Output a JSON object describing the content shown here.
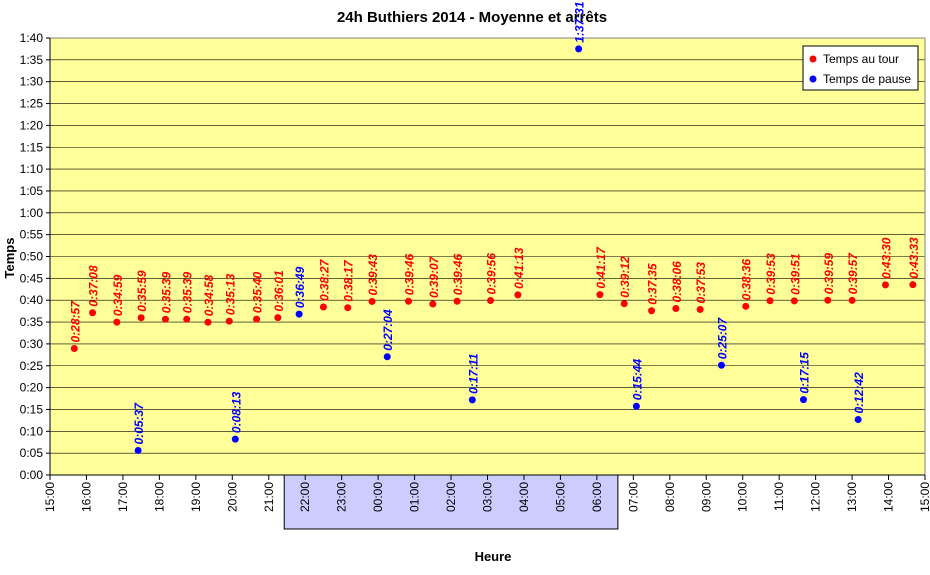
{
  "chart_data": {
    "type": "scatter",
    "title": "24h Buthiers 2014 - Moyenne et arrêts",
    "xlabel": "Heure",
    "ylabel": "Temps",
    "x_ticks": [
      "15:00",
      "16:00",
      "17:00",
      "18:00",
      "19:00",
      "20:00",
      "21:00",
      "22:00",
      "23:00",
      "00:00",
      "01:00",
      "02:00",
      "03:00",
      "04:00",
      "05:00",
      "06:00",
      "07:00",
      "08:00",
      "09:00",
      "10:00",
      "11:00",
      "12:00",
      "13:00",
      "14:00",
      "15:00"
    ],
    "highlighted_ticks": [
      "22:00",
      "23:00",
      "00:00",
      "01:00",
      "02:00",
      "03:00",
      "04:00",
      "05:00",
      "06:00"
    ],
    "y_ticks": [
      "0:00",
      "0:05",
      "0:10",
      "0:15",
      "0:20",
      "0:25",
      "0:30",
      "0:35",
      "0:40",
      "0:45",
      "0:50",
      "0:55",
      "1:00",
      "1:05",
      "1:10",
      "1:15",
      "1:20",
      "1:25",
      "1:30",
      "1:35",
      "1:40"
    ],
    "ylim": [
      "0:00",
      "1:40"
    ],
    "xlim": [
      "15:00",
      "15:00"
    ],
    "grid": true,
    "legend_position": "top-right",
    "colors": {
      "plot_bg": "#FFFF99",
      "night_band": "#CCCCFF",
      "lap": "#FF0000",
      "pause": "#0000FF"
    },
    "series": [
      {
        "name": "Temps au tour",
        "color": "#FF0000",
        "points": [
          {
            "x": "15:40",
            "y": "0:28:57",
            "label": "0:28:57"
          },
          {
            "x": "16:10",
            "y": "0:37:08",
            "label": "0:37:08"
          },
          {
            "x": "16:50",
            "y": "0:34:59",
            "label": "0:34:59"
          },
          {
            "x": "17:30",
            "y": "0:35:59",
            "label": "0:35:59"
          },
          {
            "x": "18:10",
            "y": "0:35:39",
            "label": "0:35:39"
          },
          {
            "x": "18:45",
            "y": "0:35:39",
            "label": "0:35:39"
          },
          {
            "x": "19:20",
            "y": "0:34:58",
            "label": "0:34:58"
          },
          {
            "x": "19:55",
            "y": "0:35:13",
            "label": "0:35:13"
          },
          {
            "x": "20:40",
            "y": "0:35:40",
            "label": "0:35:40"
          },
          {
            "x": "21:15",
            "y": "0:36:01",
            "label": "0:36:01"
          },
          {
            "x": "22:30",
            "y": "0:38:27",
            "label": "0:38:27"
          },
          {
            "x": "23:10",
            "y": "0:38:17",
            "label": "0:38:17"
          },
          {
            "x": "23:50",
            "y": "0:39:43",
            "label": "0:39:43"
          },
          {
            "x": "00:50",
            "y": "0:39:46",
            "label": "0:39:46"
          },
          {
            "x": "01:30",
            "y": "0:39:07",
            "label": "0:39:07"
          },
          {
            "x": "02:10",
            "y": "0:39:46",
            "label": "0:39:46"
          },
          {
            "x": "03:05",
            "y": "0:39:56",
            "label": "0:39:56"
          },
          {
            "x": "03:50",
            "y": "0:41:13",
            "label": "0:41:13"
          },
          {
            "x": "06:05",
            "y": "0:41:17",
            "label": "0:41:17"
          },
          {
            "x": "06:45",
            "y": "0:39:12",
            "label": "0:39:12"
          },
          {
            "x": "07:30",
            "y": "0:37:35",
            "label": "0:37:35"
          },
          {
            "x": "08:10",
            "y": "0:38:06",
            "label": "0:38:06"
          },
          {
            "x": "08:50",
            "y": "0:37:53",
            "label": "0:37:53"
          },
          {
            "x": "10:05",
            "y": "0:38:36",
            "label": "0:38:36"
          },
          {
            "x": "10:45",
            "y": "0:39:53",
            "label": "0:39:53"
          },
          {
            "x": "11:25",
            "y": "0:39:51",
            "label": "0:39:51"
          },
          {
            "x": "12:20",
            "y": "0:39:59",
            "label": "0:39:59"
          },
          {
            "x": "13:00",
            "y": "0:39:57",
            "label": "0:39:57"
          },
          {
            "x": "13:55",
            "y": "0:43:30",
            "label": "0:43:30"
          },
          {
            "x": "14:40",
            "y": "0:43:33",
            "label": "0:43:33"
          }
        ]
      },
      {
        "name": "Temps de pause",
        "color": "#0000FF",
        "points": [
          {
            "x": "17:25",
            "y": "0:05:37",
            "label": "0:05:37"
          },
          {
            "x": "20:05",
            "y": "0:08:13",
            "label": "0:08:13"
          },
          {
            "x": "21:50",
            "y": "0:36:49",
            "label": "0:36:49"
          },
          {
            "x": "00:15",
            "y": "0:27:04",
            "label": "0:27:04"
          },
          {
            "x": "02:35",
            "y": "0:17:11",
            "label": "0:17:11"
          },
          {
            "x": "05:30",
            "y": "1:37:31",
            "label": "1:37:31"
          },
          {
            "x": "07:05",
            "y": "0:15:44",
            "label": "0:15:44"
          },
          {
            "x": "09:25",
            "y": "0:25:07",
            "label": "0:25:07"
          },
          {
            "x": "11:40",
            "y": "0:17:15",
            "label": "0:17:15"
          },
          {
            "x": "13:10",
            "y": "0:12:42",
            "label": "0:12:42"
          }
        ]
      }
    ]
  }
}
